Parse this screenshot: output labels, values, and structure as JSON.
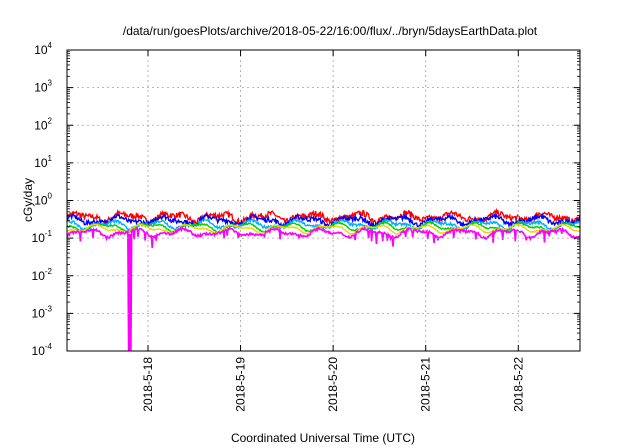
{
  "chart_data": {
    "type": "line",
    "title": "/data/run/goesPlots/archive/2018-05-22/16:00/flux/../bryn/5daysEarthData.plot",
    "xlabel": "Coordinated Universal Time (UTC)",
    "ylabel": "cGy/day",
    "y_scale": "log",
    "ylim": [
      0.0001,
      10000
    ],
    "xlim": [
      "2018-05-17 03:00",
      "2018-05-22 16:00"
    ],
    "y_ticks": [
      {
        "base": "10",
        "exp": "-4",
        "value": 0.0001
      },
      {
        "base": "10",
        "exp": "-3",
        "value": 0.001
      },
      {
        "base": "10",
        "exp": "-2",
        "value": 0.01
      },
      {
        "base": "10",
        "exp": "-1",
        "value": 0.1
      },
      {
        "base": "10",
        "exp": "0",
        "value": 1
      },
      {
        "base": "10",
        "exp": "1",
        "value": 10
      },
      {
        "base": "10",
        "exp": "2",
        "value": 100
      },
      {
        "base": "10",
        "exp": "3",
        "value": 1000
      },
      {
        "base": "10",
        "exp": "4",
        "value": 10000
      }
    ],
    "x_ticks": [
      {
        "label": "2018-5-18",
        "value": "2018-05-18"
      },
      {
        "label": "2018-5-19",
        "value": "2018-05-19"
      },
      {
        "label": "2018-5-20",
        "value": "2018-05-20"
      },
      {
        "label": "2018-5-21",
        "value": "2018-05-21"
      },
      {
        "label": "2018-5-22",
        "value": "2018-05-22"
      }
    ],
    "grid": true,
    "legend": "none",
    "series": [
      {
        "color": "#ff0000",
        "level": 0.37,
        "spread": 0.12,
        "dip_depth": 0.0
      },
      {
        "color": "#0000ff",
        "level": 0.3,
        "spread": 0.1,
        "dip_depth": 0.0
      },
      {
        "color": "#00b0ff",
        "level": 0.23,
        "spread": 0.06,
        "dip_depth": 0.0
      },
      {
        "color": "#00d000",
        "level": 0.2,
        "spread": 0.03,
        "dip_depth": 0.0
      },
      {
        "color": "#e8d800",
        "level": 0.18,
        "spread": 0.02,
        "dip_depth": 0.0
      },
      {
        "color": "#ff00ff",
        "level": 0.14,
        "spread": 0.05,
        "dip_depth": 0.35
      }
    ],
    "magenta_spike": {
      "time": "2018-05-17 19:15",
      "min_value": 0.0001
    }
  }
}
